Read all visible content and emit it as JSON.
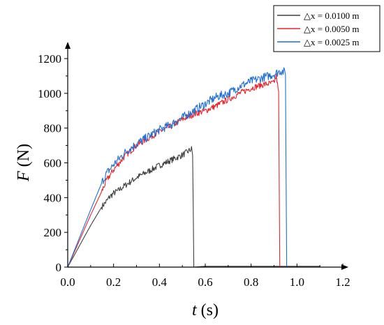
{
  "chart_data": {
    "type": "line",
    "xlabel_italic": "t",
    "xlabel_unit": " (s)",
    "ylabel_italic": "F",
    "ylabel_unit": " (N)",
    "xlim": [
      0.0,
      1.2
    ],
    "ylim": [
      0,
      1200
    ],
    "xticks": [
      0.0,
      0.2,
      0.4,
      0.6,
      0.8,
      1.0,
      1.2
    ],
    "xtick_labels": [
      "0.0",
      "0.2",
      "0.4",
      "0.6",
      "0.8",
      "1.0",
      "1.2"
    ],
    "yticks": [
      0,
      200,
      400,
      600,
      800,
      1000,
      1200
    ],
    "ytick_labels": [
      "0",
      "200",
      "400",
      "600",
      "800",
      "1000",
      "1200"
    ],
    "grid": false,
    "legend_position": "top-right",
    "series": [
      {
        "name": "△x = 0.0100 m",
        "color": "#404040",
        "x": [
          0,
          0.05,
          0.1,
          0.15,
          0.17,
          0.18,
          0.2,
          0.22,
          0.25,
          0.3,
          0.35,
          0.4,
          0.45,
          0.5,
          0.53,
          0.54,
          0.545,
          0.55,
          0.6,
          0.8,
          1.0,
          1.1
        ],
        "y": [
          0,
          120,
          240,
          350,
          380,
          400,
          425,
          440,
          470,
          515,
          550,
          585,
          615,
          645,
          670,
          680,
          650,
          0,
          5,
          5,
          5,
          5
        ]
      },
      {
        "name": "△x = 0.0050 m",
        "color": "#e8242b",
        "x": [
          0,
          0.05,
          0.1,
          0.15,
          0.17,
          0.2,
          0.25,
          0.3,
          0.35,
          0.4,
          0.45,
          0.5,
          0.55,
          0.6,
          0.65,
          0.7,
          0.75,
          0.8,
          0.85,
          0.9,
          0.91,
          0.92,
          0.925,
          0.93
        ],
        "y": [
          0,
          150,
          300,
          440,
          500,
          560,
          640,
          700,
          740,
          780,
          810,
          850,
          880,
          900,
          930,
          965,
          1000,
          1030,
          1050,
          1060,
          1100,
          1000,
          0,
          0
        ]
      },
      {
        "name": "△x = 0.0025 m",
        "color": "#1f6fd6",
        "x": [
          0,
          0.05,
          0.1,
          0.15,
          0.17,
          0.2,
          0.25,
          0.3,
          0.35,
          0.4,
          0.45,
          0.5,
          0.55,
          0.6,
          0.65,
          0.7,
          0.75,
          0.8,
          0.85,
          0.9,
          0.93,
          0.95,
          0.955,
          0.96
        ],
        "y": [
          0,
          165,
          330,
          490,
          540,
          590,
          660,
          710,
          750,
          790,
          820,
          860,
          900,
          940,
          980,
          1000,
          1040,
          1070,
          1090,
          1110,
          1130,
          1120,
          0,
          0
        ]
      }
    ]
  }
}
